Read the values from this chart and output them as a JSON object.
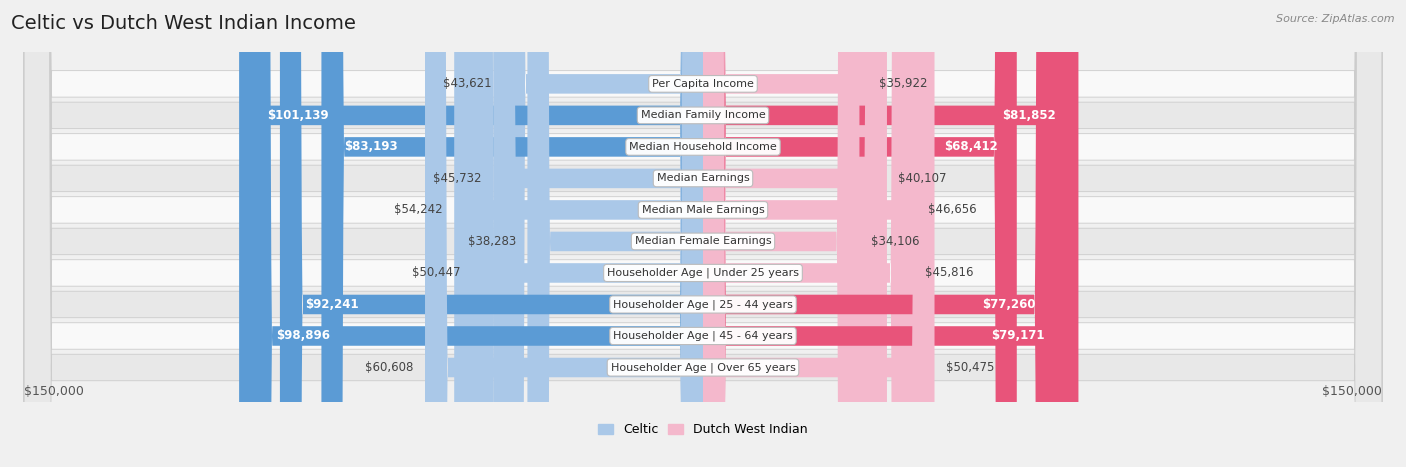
{
  "title": "Celtic vs Dutch West Indian Income",
  "source": "Source: ZipAtlas.com",
  "categories": [
    "Per Capita Income",
    "Median Family Income",
    "Median Household Income",
    "Median Earnings",
    "Median Male Earnings",
    "Median Female Earnings",
    "Householder Age | Under 25 years",
    "Householder Age | 25 - 44 years",
    "Householder Age | 45 - 64 years",
    "Householder Age | Over 65 years"
  ],
  "celtic_values": [
    43621,
    101139,
    83193,
    45732,
    54242,
    38283,
    50447,
    92241,
    98896,
    60608
  ],
  "dutch_values": [
    35922,
    81852,
    68412,
    40107,
    46656,
    34106,
    45816,
    77260,
    79171,
    50475
  ],
  "celtic_labels": [
    "$43,621",
    "$101,139",
    "$83,193",
    "$45,732",
    "$54,242",
    "$38,283",
    "$50,447",
    "$92,241",
    "$98,896",
    "$60,608"
  ],
  "dutch_labels": [
    "$35,922",
    "$81,852",
    "$68,412",
    "$40,107",
    "$46,656",
    "$34,106",
    "$45,816",
    "$77,260",
    "$79,171",
    "$50,475"
  ],
  "celtic_color_light": "#aac8e8",
  "celtic_color_dark": "#5b9bd5",
  "dutch_color_light": "#f4b8cc",
  "dutch_color_dark": "#e8547a",
  "bg_color": "#f0f0f0",
  "row_bg_light": "#f9f9f9",
  "row_bg_dark": "#e8e8e8",
  "max_value": 150000,
  "label_left": "$150,000",
  "label_right": "$150,000",
  "legend_celtic": "Celtic",
  "legend_dutch": "Dutch West Indian",
  "title_fontsize": 14,
  "label_fontsize": 8.5,
  "category_fontsize": 8.0,
  "inside_label_threshold": 65000
}
